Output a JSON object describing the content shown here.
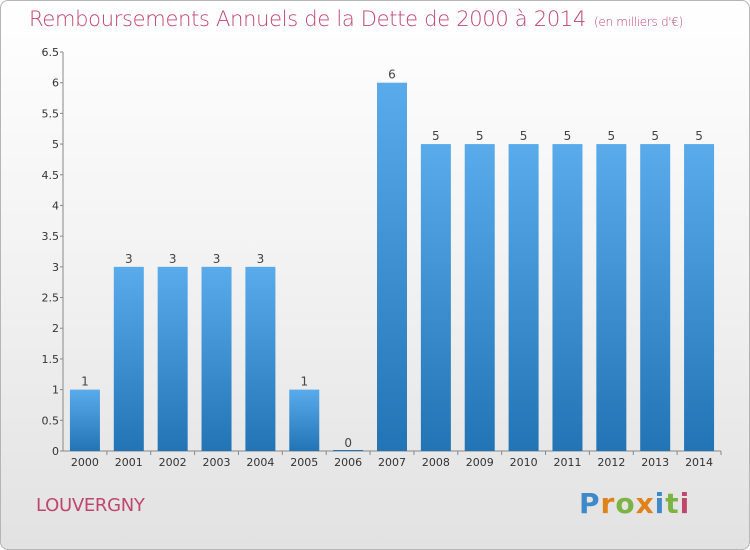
{
  "header": {
    "title": "Remboursements Annuels de la Dette de 2000 à 2014",
    "unit": "(en milliers d'€)"
  },
  "footer": {
    "town": "LOUVERGNY",
    "logo_letters": [
      "P",
      "r",
      "o",
      "x",
      "i",
      "t",
      "i"
    ]
  },
  "colors": {
    "title": "#c0466e",
    "bar_light": "#5aabeb",
    "bar_dark": "#2274b5"
  },
  "chart_data": {
    "type": "bar",
    "title": "Remboursements Annuels de la Dette de 2000 à 2014",
    "xlabel": "",
    "ylabel": "",
    "ylim": [
      0,
      6.5
    ],
    "y_ticks": [
      "0",
      "0.5",
      "1",
      "1.5",
      "2",
      "2.5",
      "3",
      "3.5",
      "4",
      "4.5",
      "5",
      "5.5",
      "6",
      "6.5"
    ],
    "categories": [
      "2000",
      "2001",
      "2002",
      "2003",
      "2004",
      "2005",
      "2006",
      "2007",
      "2008",
      "2009",
      "2010",
      "2011",
      "2012",
      "2013",
      "2014"
    ],
    "values": [
      1,
      3,
      3,
      3,
      3,
      1,
      0,
      6,
      5,
      5,
      5,
      5,
      5,
      5,
      5
    ],
    "data_labels": [
      "1",
      "3",
      "3",
      "3",
      "3",
      "1",
      "0",
      "6",
      "5",
      "5",
      "5",
      "5",
      "5",
      "5",
      "5"
    ],
    "grid": false,
    "legend": "none"
  }
}
